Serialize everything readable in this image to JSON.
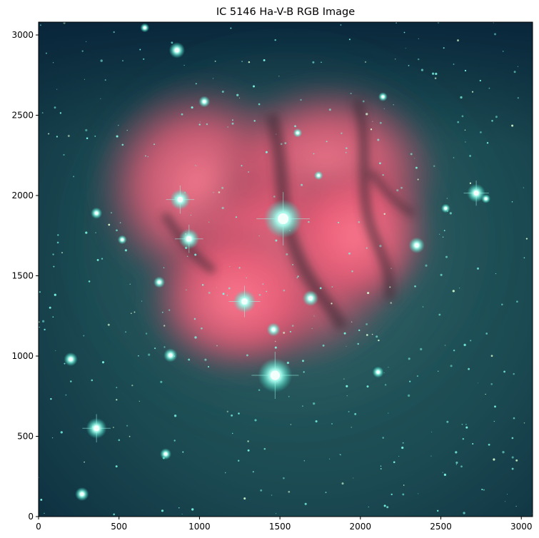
{
  "chart_data": {
    "type": "image",
    "title": "IC 5146 Ha-V-B RGB Image",
    "xlabel": "",
    "ylabel": "",
    "xlim": [
      0,
      3070
    ],
    "ylim": [
      0,
      3080
    ],
    "x_ticks": [
      0,
      500,
      1000,
      1500,
      2000,
      2500,
      3000
    ],
    "y_ticks": [
      0,
      500,
      1000,
      1500,
      2000,
      2500,
      3000
    ],
    "grid": false,
    "colors": {
      "background_deep": "#0c2e3c",
      "background_mid": "#1d4e55",
      "nebula_core": "#ff6f86",
      "nebula_edge": "#c2516a",
      "dust_lane": "#3b2a36",
      "star_color": "#7dfce8",
      "star_core": "#f2fffb"
    },
    "bright_stars": [
      {
        "x": 1520,
        "y": 1855,
        "r": 17
      },
      {
        "x": 1470,
        "y": 880,
        "r": 15
      },
      {
        "x": 360,
        "y": 550,
        "r": 9
      },
      {
        "x": 1280,
        "y": 1340,
        "r": 10
      },
      {
        "x": 935,
        "y": 1730,
        "r": 9
      },
      {
        "x": 880,
        "y": 1975,
        "r": 9
      },
      {
        "x": 2720,
        "y": 2015,
        "r": 8
      },
      {
        "x": 860,
        "y": 2905,
        "r": 7
      },
      {
        "x": 2350,
        "y": 1690,
        "r": 7
      },
      {
        "x": 1690,
        "y": 1360,
        "r": 7
      },
      {
        "x": 200,
        "y": 980,
        "r": 6
      },
      {
        "x": 820,
        "y": 1005,
        "r": 6
      },
      {
        "x": 1460,
        "y": 1165,
        "r": 6
      },
      {
        "x": 270,
        "y": 140,
        "r": 6
      },
      {
        "x": 790,
        "y": 390,
        "r": 5
      },
      {
        "x": 2110,
        "y": 900,
        "r": 5
      },
      {
        "x": 750,
        "y": 1460,
        "r": 5
      },
      {
        "x": 1030,
        "y": 2585,
        "r": 5
      },
      {
        "x": 360,
        "y": 1890,
        "r": 5
      },
      {
        "x": 2530,
        "y": 1920,
        "r": 4
      },
      {
        "x": 1610,
        "y": 2390,
        "r": 4
      },
      {
        "x": 660,
        "y": 3045,
        "r": 4
      },
      {
        "x": 520,
        "y": 1725,
        "r": 4
      },
      {
        "x": 2780,
        "y": 1980,
        "r": 4
      },
      {
        "x": 1740,
        "y": 2125,
        "r": 4
      },
      {
        "x": 2140,
        "y": 2615,
        "r": 4
      }
    ]
  }
}
